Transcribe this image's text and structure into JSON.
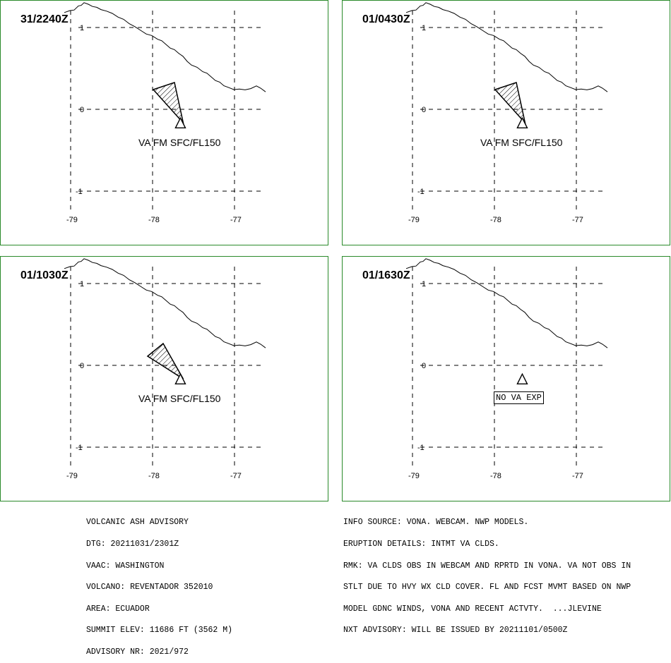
{
  "panels": [
    {
      "time": "31/2240Z",
      "va_label": "VA FM SFC/FL150",
      "ash": true
    },
    {
      "time": "01/0430Z",
      "va_label": "VA FM SFC/FL150",
      "ash": true
    },
    {
      "time": "01/1030Z",
      "va_label": "VA FM SFC/FL150",
      "ash": true
    },
    {
      "time": "01/1630Z",
      "va_label": "NO VA EXP",
      "ash": false
    }
  ],
  "map": {
    "lon_ticks": [
      "-79",
      "-78",
      "-77"
    ],
    "lat_ticks": [
      "1",
      "0",
      "-1"
    ],
    "volcano_lon": -77.66,
    "volcano_lat": -0.08,
    "grid_line_color": "#000000",
    "frame_color": "#2a8a2a",
    "volcano_symbol": "triangle-icon"
  },
  "advisory_left": [
    "VOLCANIC ASH ADVISORY",
    "DTG: 20211031/2301Z",
    "VAAC: WASHINGTON",
    "VOLCANO: REVENTADOR 352010",
    "AREA: ECUADOR",
    "SUMMIT ELEV: 11686 FT (3562 M)",
    "ADVISORY NR: 2021/972"
  ],
  "advisory_right": [
    "INFO SOURCE: VONA. WEBCAM. NWP MODELS.",
    "ERUPTION DETAILS: INTMT VA CLDS.",
    "RMK: VA CLDS OBS IN WEBCAM AND RPRTD IN VONA. VA NOT OBS IN",
    "STLT DUE TO HVY WX CLD COVER. FL AND FCST MVMT BASED ON NWP",
    "MODEL GDNC WINDS, VONA AND RECENT ACTVTY.  ...JLEVINE",
    "NXT ADVISORY: WILL BE ISSUED BY 20211101/0500Z"
  ]
}
